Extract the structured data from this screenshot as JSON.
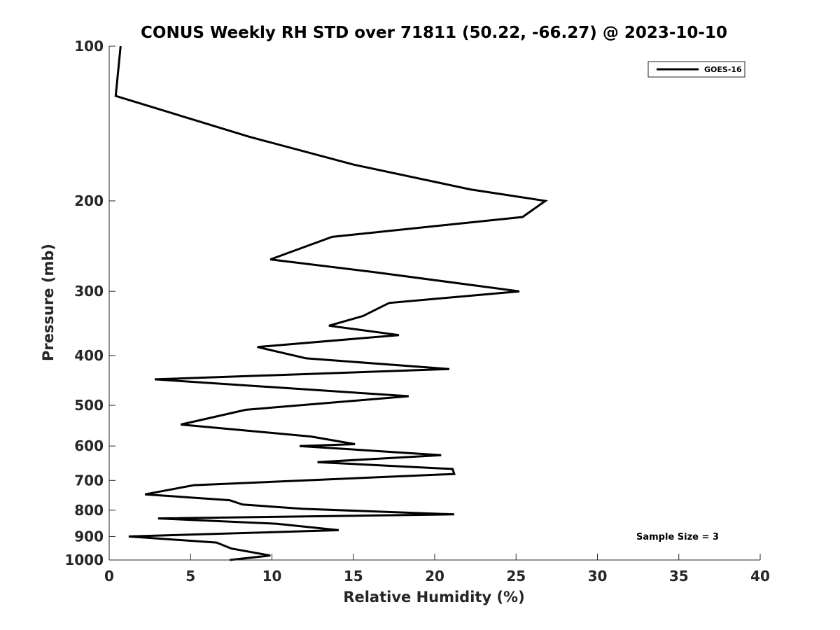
{
  "chart_data": {
    "type": "line",
    "title": "CONUS Weekly RH STD over 71811 (50.22, -66.27) @ 2023-10-10",
    "xlabel": "Relative Humidity (%)",
    "ylabel": "Pressure (mb)",
    "xlim": [
      0,
      40
    ],
    "ylim": [
      100,
      1000
    ],
    "yscale": "log",
    "yreversed": true,
    "grid": false,
    "xticks": [
      0,
      5,
      10,
      15,
      20,
      25,
      30,
      35,
      40
    ],
    "yticks": [
      100,
      200,
      300,
      400,
      500,
      600,
      700,
      800,
      900,
      1000
    ],
    "legend_position": "top-right",
    "series": [
      {
        "name": "GOES-16",
        "color": "#000000",
        "x": [
          0.7,
          0.4,
          8.6,
          15.0,
          22.2,
          26.8,
          25.4,
          13.7,
          9.9,
          16.2,
          25.2,
          17.2,
          15.6,
          13.5,
          17.8,
          9.1,
          12.1,
          20.9,
          2.8,
          18.4,
          8.4,
          4.4,
          12.4,
          15.1,
          11.7,
          20.4,
          12.8,
          21.1,
          21.2,
          5.2,
          2.2,
          7.4,
          8.2,
          11.9,
          21.2,
          3.0,
          10.3,
          14.1,
          1.2,
          6.6,
          7.5,
          9.9,
          7.4
        ],
        "y": [
          100,
          125,
          150,
          170,
          190,
          200,
          215,
          235,
          260,
          275,
          300,
          316,
          335,
          350,
          365,
          385,
          405,
          425,
          445,
          480,
          510,
          545,
          575,
          595,
          600,
          625,
          645,
          665,
          680,
          715,
          745,
          765,
          780,
          795,
          815,
          830,
          850,
          875,
          900,
          925,
          950,
          980,
          1000
        ]
      }
    ],
    "annotations": [
      "Sample Size = 3"
    ]
  }
}
